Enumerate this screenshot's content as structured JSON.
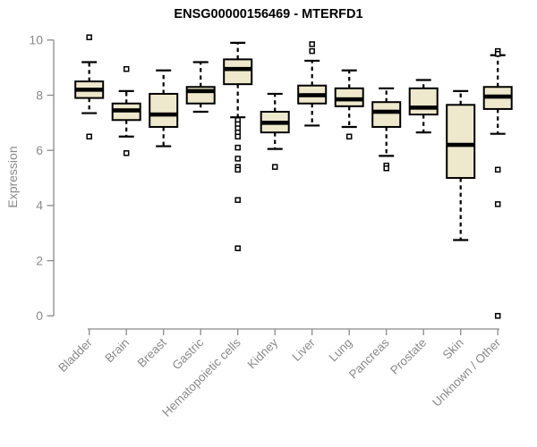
{
  "title": "ENSG00000156469 - MTERFD1",
  "chart_data": {
    "type": "boxplot",
    "title": "ENSG00000156469 - MTERFD1",
    "xlabel": "",
    "ylabel": "Expression",
    "ylim": [
      0,
      10
    ],
    "yticks": [
      0,
      2,
      4,
      6,
      8,
      10
    ],
    "grid": false,
    "legend": "none",
    "categories": [
      "Bladder",
      "Brain",
      "Breast",
      "Gastric",
      "Hematopoietic cells",
      "Kidney",
      "Liver",
      "Lung",
      "Pancreas",
      "Prostate",
      "Skin",
      "Unknown / Other"
    ],
    "series": [
      {
        "category": "Bladder",
        "whisker_low": 7.35,
        "q1": 7.9,
        "median": 8.2,
        "q3": 8.5,
        "whisker_high": 9.2,
        "outliers": [
          10.1,
          6.5
        ]
      },
      {
        "category": "Brain",
        "whisker_low": 6.5,
        "q1": 7.1,
        "median": 7.45,
        "q3": 7.7,
        "whisker_high": 8.15,
        "outliers": [
          8.95,
          5.9
        ]
      },
      {
        "category": "Breast",
        "whisker_low": 6.15,
        "q1": 6.85,
        "median": 7.3,
        "q3": 8.05,
        "whisker_high": 8.9,
        "outliers": []
      },
      {
        "category": "Gastric",
        "whisker_low": 7.4,
        "q1": 7.7,
        "median": 8.15,
        "q3": 8.3,
        "whisker_high": 9.2,
        "outliers": []
      },
      {
        "category": "Hematopoietic cells",
        "whisker_low": 7.2,
        "q1": 8.4,
        "median": 8.95,
        "q3": 9.3,
        "whisker_high": 9.9,
        "outliers": [
          7.1,
          6.95,
          6.8,
          6.65,
          6.5,
          6.1,
          5.7,
          5.4,
          5.3,
          4.2,
          2.45
        ]
      },
      {
        "category": "Kidney",
        "whisker_low": 6.05,
        "q1": 6.65,
        "median": 7.0,
        "q3": 7.4,
        "whisker_high": 8.05,
        "outliers": [
          5.4
        ]
      },
      {
        "category": "Liver",
        "whisker_low": 6.9,
        "q1": 7.7,
        "median": 8.0,
        "q3": 8.35,
        "whisker_high": 9.25,
        "outliers": [
          9.85,
          9.6
        ]
      },
      {
        "category": "Lung",
        "whisker_low": 6.85,
        "q1": 7.6,
        "median": 7.85,
        "q3": 8.25,
        "whisker_high": 8.9,
        "outliers": [
          6.5
        ]
      },
      {
        "category": "Pancreas",
        "whisker_low": 5.8,
        "q1": 6.85,
        "median": 7.4,
        "q3": 7.75,
        "whisker_high": 8.25,
        "outliers": [
          5.45,
          5.35
        ]
      },
      {
        "category": "Prostate",
        "whisker_low": 6.65,
        "q1": 7.3,
        "median": 7.55,
        "q3": 8.25,
        "whisker_high": 8.55,
        "outliers": []
      },
      {
        "category": "Skin",
        "whisker_low": 2.75,
        "q1": 5.0,
        "median": 6.2,
        "q3": 7.65,
        "whisker_high": 8.15,
        "outliers": []
      },
      {
        "category": "Unknown / Other",
        "whisker_low": 6.6,
        "q1": 7.5,
        "median": 7.95,
        "q3": 8.3,
        "whisker_high": 9.45,
        "outliers": [
          9.6,
          9.5,
          5.3,
          4.05,
          0.0
        ]
      }
    ],
    "colors": {
      "box_fill": "#EEE8CD",
      "box_border": "#000000",
      "median": "#000000",
      "whisker": "#000000",
      "outlier_fill": "#ffffff",
      "axis": "#8a8a8a",
      "label": "#8a8a8a",
      "title": "#000000",
      "background": "#ffffff"
    }
  }
}
